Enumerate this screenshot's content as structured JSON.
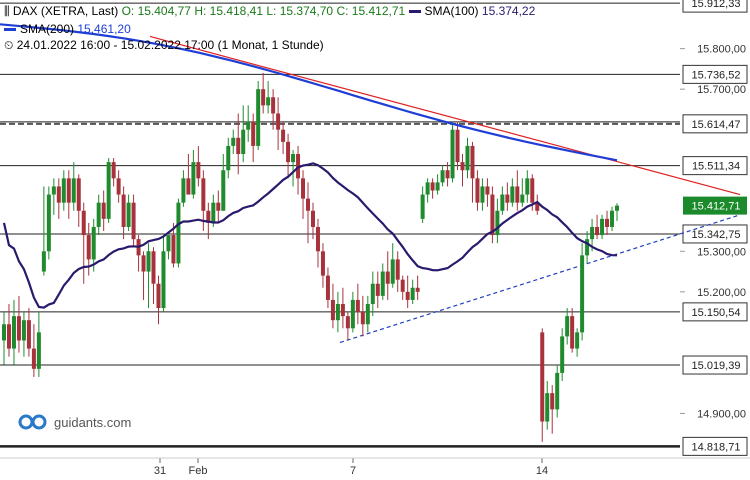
{
  "header": {
    "symbol": "DAX (XETRA, Last)",
    "open": "O: 15.404,77",
    "high": "H: 15.418,41",
    "low": "L: 15.374,70",
    "close": "C: 15.412,71",
    "sma100_label": "SMA(100)",
    "sma100_value": "15.374,22",
    "sma200_label": "SMA(200)",
    "sma200_value": "15.461,20",
    "period": "24.01.2022 16:00 - 15.02.2022 17:00",
    "interval": "(1 Monat, 1 Stunde)"
  },
  "brand": {
    "name": "guidants.com"
  },
  "colors": {
    "up": "#1f8b2e",
    "down": "#a8323c",
    "sma100": "#2a1a6e",
    "sma200": "#1f3ed6",
    "resistance": "#e02020",
    "support": "#2040c0",
    "last_price_bg": "#1a8a2a"
  },
  "chart_data": {
    "type": "candlestick",
    "title": "DAX (XETRA, Last)",
    "y_ticks": [
      "15.800,00",
      "15.700,00",
      "15.300,00",
      "15.200,00",
      "14.900,00"
    ],
    "x_ticks": [
      "31",
      "Feb",
      "7",
      "14"
    ],
    "ylim": [
      14790,
      15920
    ],
    "price_levels": [
      {
        "label": "15.912,33",
        "value": 15912.33
      },
      {
        "label": "15.736,52",
        "value": 15736.52
      },
      {
        "label": "15.614,47",
        "value": 15614.47
      },
      {
        "label": "15.511,34",
        "value": 15511.34
      },
      {
        "label": "15.342,75",
        "value": 15342.75
      },
      {
        "label": "15.150,54",
        "value": 15150.54
      },
      {
        "label": "15.019,39",
        "value": 15019.39
      },
      {
        "label": "14.818,71",
        "value": 14818.71
      }
    ],
    "last_price": {
      "label": "15.412,71",
      "value": 15412.71
    },
    "candles_approx": [
      [
        15080,
        15120,
        15020,
        15150
      ],
      [
        15120,
        15060,
        15040,
        15170
      ],
      [
        15060,
        15140,
        15020,
        15180
      ],
      [
        15140,
        15080,
        15050,
        15190
      ],
      [
        15080,
        15130,
        15040,
        15150
      ],
      [
        15130,
        15060,
        15040,
        15160
      ],
      [
        15060,
        15010,
        14990,
        15120
      ],
      [
        15010,
        15100,
        14990,
        15150
      ],
      [
        15250,
        15300,
        15240,
        15460
      ],
      [
        15300,
        15440,
        15280,
        15460
      ],
      [
        15440,
        15460,
        15390,
        15480
      ],
      [
        15460,
        15420,
        15380,
        15480
      ],
      [
        15420,
        15480,
        15400,
        15500
      ],
      [
        15480,
        15420,
        15380,
        15500
      ],
      [
        15420,
        15480,
        15400,
        15520
      ],
      [
        15480,
        15400,
        15360,
        15490
      ],
      [
        15400,
        15340,
        15220,
        15420
      ],
      [
        15340,
        15280,
        15240,
        15370
      ],
      [
        15280,
        15360,
        15250,
        15380
      ],
      [
        15360,
        15420,
        15340,
        15440
      ],
      [
        15420,
        15380,
        15350,
        15450
      ],
      [
        15380,
        15520,
        15370,
        15530
      ],
      [
        15520,
        15480,
        15460,
        15530
      ],
      [
        15480,
        15440,
        15420,
        15500
      ],
      [
        15440,
        15360,
        15330,
        15460
      ],
      [
        15360,
        15420,
        15350,
        15440
      ],
      [
        15420,
        15330,
        15310,
        15440
      ],
      [
        15330,
        15290,
        15250,
        15340
      ],
      [
        15290,
        15250,
        15180,
        15300
      ],
      [
        15250,
        15300,
        15160,
        15320
      ],
      [
        15300,
        15220,
        15170,
        15310
      ],
      [
        15220,
        15160,
        15120,
        15240
      ],
      [
        15160,
        15300,
        15150,
        15340
      ],
      [
        15300,
        15340,
        15280,
        15340
      ],
      [
        15340,
        15270,
        15260,
        15370
      ],
      [
        15270,
        15420,
        15260,
        15430
      ],
      [
        15420,
        15480,
        15410,
        15500
      ],
      [
        15480,
        15440,
        15440,
        15540
      ],
      [
        15440,
        15520,
        15430,
        15550
      ],
      [
        15520,
        15480,
        15460,
        15560
      ],
      [
        15480,
        15400,
        15350,
        15500
      ],
      [
        15400,
        15370,
        15330,
        15420
      ],
      [
        15370,
        15420,
        15360,
        15440
      ],
      [
        15420,
        15400,
        15370,
        15450
      ],
      [
        15400,
        15500,
        15400,
        15540
      ],
      [
        15500,
        15560,
        15480,
        15580
      ],
      [
        15560,
        15580,
        15540,
        15600
      ],
      [
        15580,
        15540,
        15490,
        15640
      ],
      [
        15540,
        15600,
        15520,
        15660
      ],
      [
        15600,
        15620,
        15570,
        15660
      ],
      [
        15620,
        15560,
        15520,
        15640
      ],
      [
        15560,
        15700,
        15550,
        15720
      ],
      [
        15700,
        15660,
        15640,
        15740
      ],
      [
        15660,
        15680,
        15640,
        15720
      ],
      [
        15680,
        15640,
        15600,
        15700
      ],
      [
        15640,
        15600,
        15550,
        15680
      ],
      [
        15600,
        15570,
        15540,
        15620
      ],
      [
        15570,
        15520,
        15480,
        15590
      ],
      [
        15520,
        15540,
        15460,
        15550
      ],
      [
        15540,
        15480,
        15440,
        15560
      ],
      [
        15480,
        15430,
        15380,
        15500
      ],
      [
        15430,
        15400,
        15320,
        15470
      ],
      [
        15400,
        15360,
        15330,
        15420
      ],
      [
        15360,
        15300,
        15260,
        15380
      ],
      [
        15300,
        15240,
        15210,
        15320
      ],
      [
        15240,
        15180,
        15160,
        15260
      ],
      [
        15180,
        15130,
        15110,
        15220
      ],
      [
        15130,
        15170,
        15100,
        15200
      ],
      [
        15170,
        15140,
        15110,
        15210
      ],
      [
        15140,
        15110,
        15080,
        15150
      ],
      [
        15110,
        15180,
        15100,
        15200
      ],
      [
        15180,
        15150,
        15120,
        15220
      ],
      [
        15150,
        15120,
        15090,
        15190
      ],
      [
        15120,
        15170,
        15100,
        15190
      ],
      [
        15170,
        15220,
        15140,
        15250
      ],
      [
        15220,
        15190,
        15160,
        15250
      ],
      [
        15190,
        15250,
        15180,
        15270
      ],
      [
        15250,
        15220,
        15180,
        15300
      ],
      [
        15220,
        15280,
        15210,
        15320
      ],
      [
        15280,
        15230,
        15200,
        15300
      ],
      [
        15230,
        15200,
        15180,
        15240
      ],
      [
        15200,
        15180,
        15160,
        15240
      ],
      [
        15180,
        15210,
        15170,
        15230
      ],
      [
        15210,
        15200,
        15180,
        15240
      ],
      [
        15380,
        15440,
        15370,
        15460
      ],
      [
        15440,
        15470,
        15420,
        15480
      ],
      [
        15470,
        15450,
        15430,
        15480
      ],
      [
        15450,
        15470,
        15440,
        15490
      ],
      [
        15470,
        15500,
        15460,
        15510
      ],
      [
        15500,
        15480,
        15460,
        15520
      ],
      [
        15480,
        15600,
        15470,
        15620
      ],
      [
        15600,
        15520,
        15500,
        15620
      ],
      [
        15520,
        15500,
        15460,
        15540
      ],
      [
        15500,
        15560,
        15480,
        15580
      ],
      [
        15560,
        15480,
        15420,
        15570
      ],
      [
        15480,
        15420,
        15400,
        15500
      ],
      [
        15420,
        15460,
        15400,
        15480
      ],
      [
        15460,
        15440,
        15410,
        15480
      ],
      [
        15440,
        15340,
        15320,
        15460
      ],
      [
        15340,
        15400,
        15320,
        15430
      ],
      [
        15400,
        15440,
        15390,
        15460
      ],
      [
        15440,
        15420,
        15400,
        15470
      ],
      [
        15420,
        15460,
        15410,
        15480
      ],
      [
        15460,
        15420,
        15400,
        15500
      ],
      [
        15420,
        15440,
        15410,
        15480
      ],
      [
        15440,
        15480,
        15420,
        15500
      ],
      [
        15480,
        15420,
        15400,
        15490
      ],
      [
        15420,
        15400,
        15390,
        15440
      ],
      [
        15100,
        14880,
        14830,
        15110
      ],
      [
        14880,
        14950,
        14860,
        14980
      ],
      [
        14950,
        14910,
        14850,
        14970
      ],
      [
        14910,
        15000,
        14890,
        15020
      ],
      [
        15000,
        15090,
        14980,
        15110
      ],
      [
        15090,
        15140,
        15070,
        15160
      ],
      [
        15140,
        15060,
        15050,
        15160
      ],
      [
        15060,
        15100,
        15040,
        15110
      ],
      [
        15100,
        15290,
        15080,
        15320
      ],
      [
        15290,
        15330,
        15270,
        15350
      ],
      [
        15330,
        15360,
        15300,
        15380
      ],
      [
        15360,
        15340,
        15330,
        15390
      ],
      [
        15340,
        15380,
        15330,
        15390
      ],
      [
        15380,
        15360,
        15340,
        15400
      ],
      [
        15360,
        15400,
        15350,
        15410
      ],
      [
        15400,
        15412.71,
        15374.7,
        15418.41
      ]
    ]
  }
}
